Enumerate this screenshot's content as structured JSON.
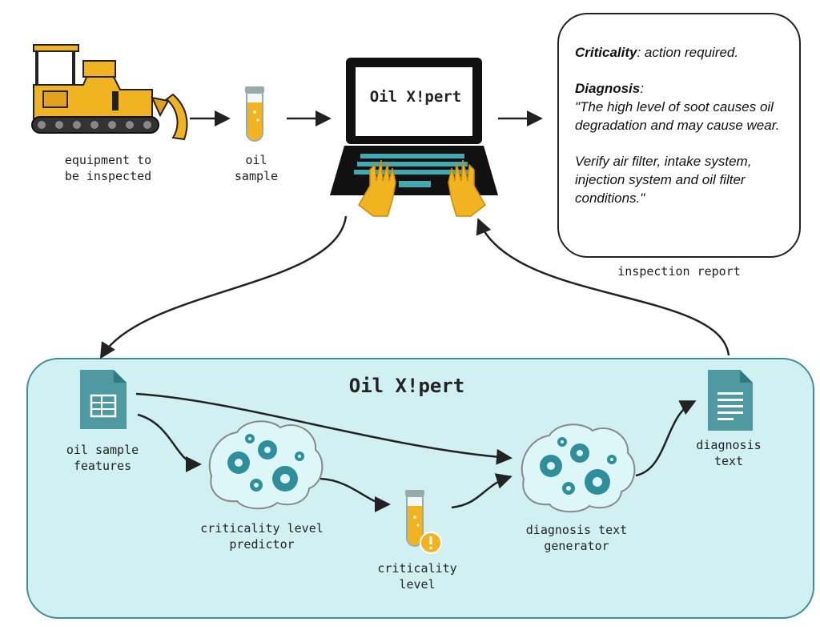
{
  "labels": {
    "equipment": [
      "equipment to",
      "be inspected"
    ],
    "oil_sample": [
      "oil",
      "sample"
    ],
    "screen_title": "Oil X!pert",
    "inspection_report": "inspection report",
    "panel_title": "Oil X!pert",
    "oil_sample_features": [
      "oil sample",
      "features"
    ],
    "criticality_predictor": [
      "criticality level",
      "predictor"
    ],
    "criticality_level": [
      "criticality",
      "level"
    ],
    "diagnosis_generator": [
      "diagnosis text",
      "generator"
    ],
    "diagnosis_text": [
      "diagnosis",
      "text"
    ]
  },
  "report": {
    "criticality_label": "Criticality",
    "criticality_value": ": action required.",
    "diagnosis_label": "Diagnosis",
    "diagnosis_colon": ":",
    "quote1": "\"The high level of soot causes oil degradation and may cause wear.",
    "quote2": "Verify air filter, intake system, injection system and oil filter conditions.\""
  },
  "colors": {
    "panel_bg": "#d1f0f1",
    "panel_border": "#3f8d95",
    "doc_icon": "#4e9aa0",
    "brain_bg": "#ddf6f8",
    "gear": "#2f8e9c",
    "oil_yellow": "#f2b321",
    "laptop": "#111111"
  }
}
